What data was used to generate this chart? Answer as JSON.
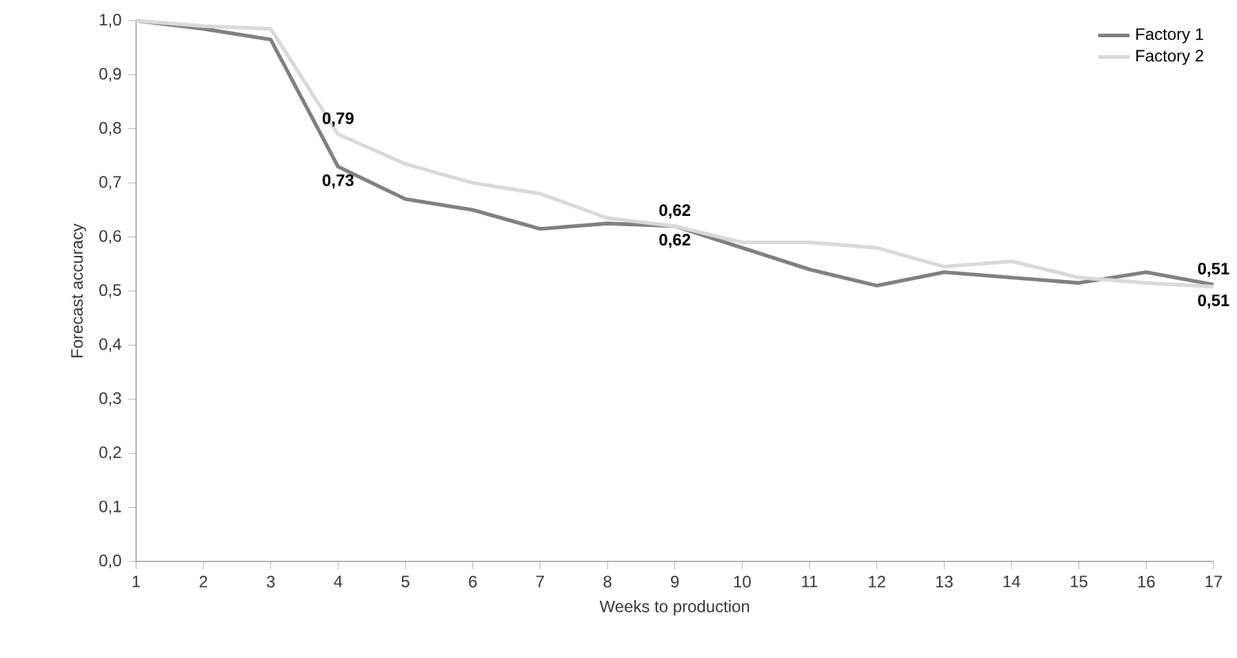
{
  "chart_data": {
    "type": "line",
    "xlabel": "Weeks to production",
    "ylabel": "Forecast accuracy",
    "x": [
      1,
      2,
      3,
      4,
      5,
      6,
      7,
      8,
      9,
      10,
      11,
      12,
      13,
      14,
      15,
      16,
      17
    ],
    "series": [
      {
        "name": "Factory 1",
        "color": "#808080",
        "values": [
          1.0,
          0.985,
          0.965,
          0.73,
          0.67,
          0.65,
          0.615,
          0.625,
          0.62,
          0.58,
          0.54,
          0.51,
          0.535,
          0.525,
          0.515,
          0.535,
          0.512
        ],
        "value_labels": [
          null,
          null,
          null,
          "0,73",
          null,
          null,
          null,
          null,
          "0,62",
          null,
          null,
          null,
          null,
          null,
          null,
          null,
          "0,51"
        ]
      },
      {
        "name": "Factory 2",
        "color": "#d9d9d9",
        "values": [
          1.0,
          0.99,
          0.985,
          0.79,
          0.735,
          0.7,
          0.68,
          0.635,
          0.62,
          0.59,
          0.59,
          0.58,
          0.545,
          0.555,
          0.525,
          0.515,
          0.508
        ],
        "value_labels": [
          null,
          null,
          null,
          "0,79",
          null,
          null,
          null,
          null,
          "0,62",
          null,
          null,
          null,
          null,
          null,
          null,
          null,
          "0,51"
        ]
      }
    ],
    "xlim": [
      1,
      17
    ],
    "xticks": [
      1,
      2,
      3,
      4,
      5,
      6,
      7,
      8,
      9,
      10,
      11,
      12,
      13,
      14,
      15,
      16,
      17
    ],
    "ylim": [
      0,
      1
    ],
    "yticks": [
      {
        "value": 0,
        "label": "0,0"
      },
      {
        "value": 0.1,
        "label": "0,1"
      },
      {
        "value": 0.2,
        "label": "0,2"
      },
      {
        "value": 0.3,
        "label": "0,3"
      },
      {
        "value": 0.4,
        "label": "0,4"
      },
      {
        "value": 0.5,
        "label": "0,5"
      },
      {
        "value": 0.6,
        "label": "0,6"
      },
      {
        "value": 0.7,
        "label": "0,7"
      },
      {
        "value": 0.8,
        "label": "0,8"
      },
      {
        "value": 0.9,
        "label": "0,9"
      },
      {
        "value": 1.0,
        "label": "1,0"
      }
    ],
    "legend": "top right",
    "marker": "none",
    "line_style": "solid",
    "grid": false
  }
}
